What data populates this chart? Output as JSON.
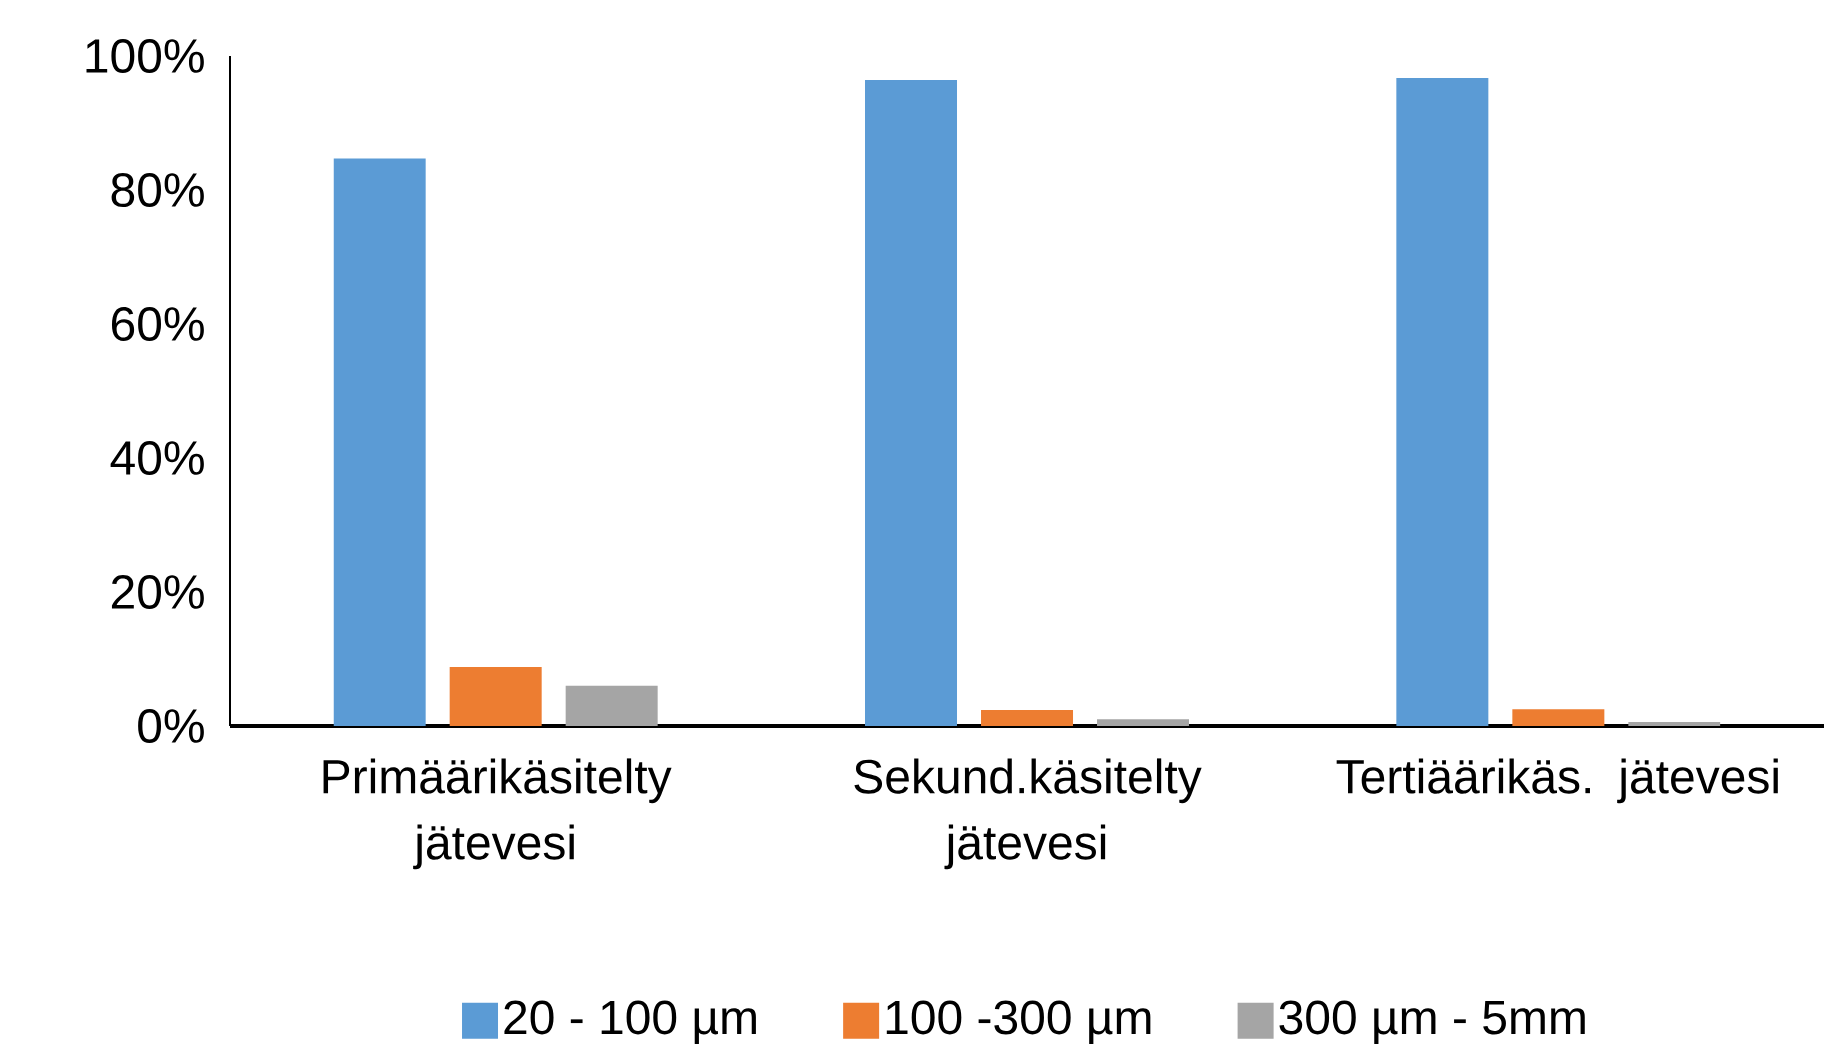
{
  "chart_data": {
    "type": "bar",
    "categories": [
      "Primäärikäsitelty jätevesi",
      "Sekund.käsitelty jätevesi",
      "Tertiäärikäs. jätevesi"
    ],
    "series": [
      {
        "name": "20 - 100 µm",
        "color": "#5b9bd5",
        "values": [
          84.7,
          96.4,
          96.7
        ]
      },
      {
        "name": "100 -300 µm",
        "color": "#ed7d31",
        "values": [
          8.8,
          2.4,
          2.5
        ]
      },
      {
        "name": "300 µm - 5mm",
        "color": "#a5a5a5",
        "values": [
          6.0,
          1.0,
          0.6
        ]
      }
    ],
    "ylim": [
      0,
      100
    ],
    "yticks": [
      {
        "value": 0,
        "label": "0%"
      },
      {
        "value": 20,
        "label": "20%"
      },
      {
        "value": 40,
        "label": "40%"
      },
      {
        "value": 60,
        "label": "60%"
      },
      {
        "value": 80,
        "label": "80%"
      },
      {
        "value": 100,
        "label": "100%"
      }
    ],
    "grid": false,
    "legend": "bottom"
  }
}
